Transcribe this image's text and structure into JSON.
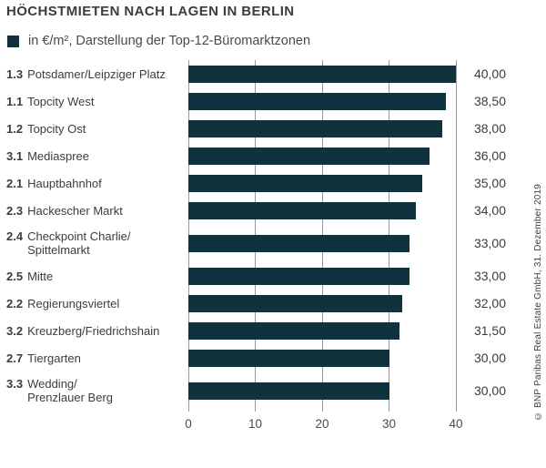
{
  "title": "HÖCHSTMIETEN NACH LAGEN IN BERLIN",
  "legend": {
    "label": "in €/m², Darstellung der Top-12-Büromarktzonen",
    "swatch": "square-icon"
  },
  "source_note": "© BNP Paribas Real Estate GmbH, 31. Dezember 2019",
  "colors": {
    "bar": "#0f323d",
    "grid": "#969a9c",
    "text": "#3c3c3b",
    "subtext": "#4a4a49"
  },
  "chart_data": {
    "type": "bar",
    "orientation": "horizontal",
    "title": "HÖCHSTMIETEN NACH LAGEN IN BERLIN",
    "subtitle": "in €/m², Darstellung der Top-12-Büromarktzonen",
    "unit": "€/m²",
    "xlim": [
      0,
      40
    ],
    "xticks": [
      "0",
      "10",
      "20",
      "30",
      "40"
    ],
    "grid": true,
    "legend_position": "top-left",
    "rows": [
      {
        "code": "1.3",
        "label_lines": [
          "Potsdamer/Leipziger Platz"
        ],
        "value": 40,
        "value_label": "40,00"
      },
      {
        "code": "1.1",
        "label_lines": [
          "Topcity West"
        ],
        "value": 38.5,
        "value_label": "38,50"
      },
      {
        "code": "1.2",
        "label_lines": [
          "Topcity Ost"
        ],
        "value": 38,
        "value_label": "38,00"
      },
      {
        "code": "3.1",
        "label_lines": [
          "Mediaspree"
        ],
        "value": 36,
        "value_label": "36,00"
      },
      {
        "code": "2.1",
        "label_lines": [
          "Hauptbahnhof"
        ],
        "value": 35,
        "value_label": "35,00"
      },
      {
        "code": "2.3",
        "label_lines": [
          "Hackescher Markt"
        ],
        "value": 34,
        "value_label": "34,00"
      },
      {
        "code": "2.4",
        "label_lines": [
          "Checkpoint Charlie/",
          "Spittelmarkt"
        ],
        "value": 33,
        "value_label": "33,00"
      },
      {
        "code": "2.5",
        "label_lines": [
          "Mitte"
        ],
        "value": 33,
        "value_label": "33,00"
      },
      {
        "code": "2.2",
        "label_lines": [
          "Regierungsviertel"
        ],
        "value": 32,
        "value_label": "32,00"
      },
      {
        "code": "3.2",
        "label_lines": [
          "Kreuzberg/Friedrichshain"
        ],
        "value": 31.5,
        "value_label": "31,50"
      },
      {
        "code": "2.7",
        "label_lines": [
          "Tiergarten"
        ],
        "value": 30,
        "value_label": "30,00"
      },
      {
        "code": "3.3",
        "label_lines": [
          "Wedding/",
          "Prenzlauer Berg"
        ],
        "value": 30,
        "value_label": "30,00"
      }
    ]
  }
}
